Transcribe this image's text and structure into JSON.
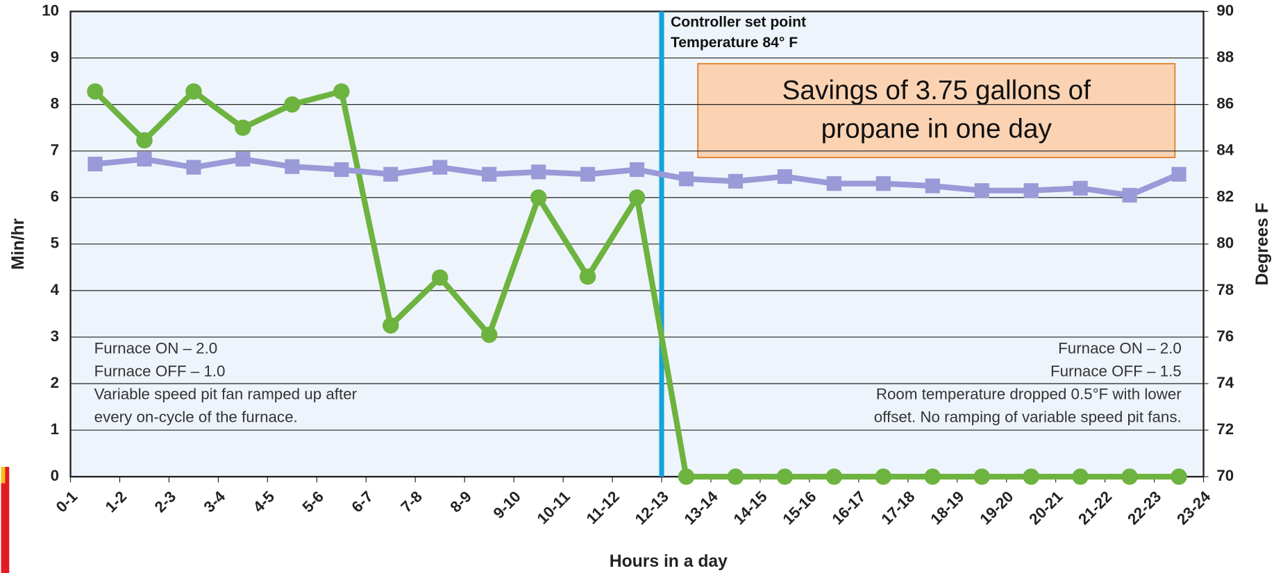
{
  "chart_data": {
    "type": "line",
    "xlabel": "Hours in a day",
    "ylabel": "Min/hr",
    "y2label": "Degrees F",
    "xlim": [
      0,
      23
    ],
    "xticks": [
      {
        "value": 0,
        "label": "0-1"
      },
      {
        "value": 1,
        "label": "1-2"
      },
      {
        "value": 2,
        "label": "2-3"
      },
      {
        "value": 3,
        "label": "3-4"
      },
      {
        "value": 4,
        "label": "4-5"
      },
      {
        "value": 5,
        "label": "5-6"
      },
      {
        "value": 6,
        "label": "6-7"
      },
      {
        "value": 7,
        "label": "7-8"
      },
      {
        "value": 8,
        "label": "8-9"
      },
      {
        "value": 9,
        "label": "9-10"
      },
      {
        "value": 10,
        "label": "10-11"
      },
      {
        "value": 11,
        "label": "11-12"
      },
      {
        "value": 12,
        "label": "12-13"
      },
      {
        "value": 13,
        "label": "13-14"
      },
      {
        "value": 14,
        "label": "14-15"
      },
      {
        "value": 15,
        "label": "15-16"
      },
      {
        "value": 16,
        "label": "16-17"
      },
      {
        "value": 17,
        "label": "17-18"
      },
      {
        "value": 18,
        "label": "18-19"
      },
      {
        "value": 19,
        "label": "19-20"
      },
      {
        "value": 20,
        "label": "20-21"
      },
      {
        "value": 21,
        "label": "21-22"
      },
      {
        "value": 22,
        "label": "22-23"
      },
      {
        "value": 23,
        "label": "23-24"
      }
    ],
    "ylim": [
      0,
      10
    ],
    "yticks": [
      0,
      1,
      2,
      3,
      4,
      5,
      6,
      7,
      8,
      9,
      10
    ],
    "y2lim": [
      70,
      90
    ],
    "y2ticks": [
      70,
      72,
      74,
      76,
      78,
      80,
      82,
      84,
      86,
      88,
      90
    ],
    "grid": true,
    "x": [
      0.5,
      1.5,
      2.5,
      3.5,
      4.5,
      5.5,
      6.5,
      7.5,
      8.5,
      9.5,
      10.5,
      11.5,
      12.5,
      13.5,
      14.5,
      15.5,
      16.5,
      17.5,
      18.5,
      19.5,
      20.5,
      21.5,
      22.5
    ],
    "series": [
      {
        "color": "#6db33f",
        "marker": "circle",
        "values": [
          8.28,
          7.23,
          8.28,
          7.5,
          8.0,
          8.28,
          3.25,
          4.28,
          3.05,
          6.0,
          4.3,
          6.0,
          0,
          0,
          0,
          0,
          0,
          0,
          0,
          0,
          0,
          0,
          0
        ]
      },
      {
        "color": "#9a9ad8",
        "marker": "square",
        "axis": "y2",
        "values": [
          83.44,
          83.65,
          83.3,
          83.65,
          83.33,
          83.2,
          83.0,
          83.3,
          83.0,
          83.1,
          83.0,
          83.2,
          82.8,
          82.7,
          82.9,
          82.6,
          82.6,
          82.5,
          82.3,
          82.3,
          82.4,
          82.1,
          83.0
        ]
      }
    ],
    "set_point": {
      "x": 12,
      "color": "#13a3dc",
      "lines": [
        "Controller set point",
        "Temperature 84° F"
      ]
    },
    "callout": {
      "lines": [
        "Savings of 3.75 gallons of",
        "propane in one day"
      ]
    },
    "left_note": [
      "Furnace ON – 2.0",
      "Furnace OFF – 1.0",
      "Variable speed pit fan ramped up after",
      "every on-cycle of the furnace."
    ],
    "right_note": [
      "Furnace ON – 2.0",
      "Furnace OFF – 1.5",
      "Room temperature dropped 0.5°F with lower",
      "offset. No ramping of variable speed pit fans."
    ]
  }
}
